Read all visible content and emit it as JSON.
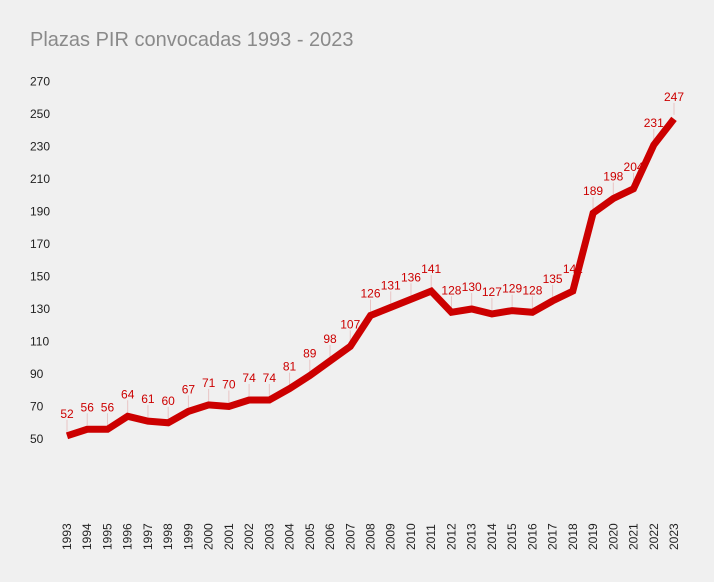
{
  "chart_data": {
    "type": "line",
    "title": "Plazas PIR convocadas 1993 - 2023",
    "xlabel": "",
    "ylabel": "",
    "categories": [
      "1993",
      "1994",
      "1995",
      "1996",
      "1997",
      "1998",
      "1999",
      "2000",
      "2001",
      "2002",
      "2003",
      "2004",
      "2005",
      "2006",
      "2007",
      "2008",
      "2009",
      "2010",
      "2011",
      "2012",
      "2013",
      "2014",
      "2015",
      "2016",
      "2017",
      "2018",
      "2019",
      "2020",
      "2021",
      "2022",
      "2023"
    ],
    "values": [
      52,
      56,
      56,
      64,
      61,
      60,
      67,
      71,
      70,
      74,
      74,
      81,
      89,
      98,
      107,
      126,
      131,
      136,
      141,
      128,
      130,
      127,
      129,
      128,
      135,
      141,
      189,
      198,
      204,
      231,
      247
    ],
    "yticks": [
      50,
      70,
      90,
      110,
      130,
      150,
      170,
      190,
      210,
      230,
      250,
      270
    ],
    "ylim": [
      26,
      282
    ],
    "grid": false,
    "legend": "none",
    "colors": {
      "line": "#cc0000",
      "label": "#cc0000",
      "leader": "#e8c4c4",
      "background": "#f0f0f0"
    }
  }
}
